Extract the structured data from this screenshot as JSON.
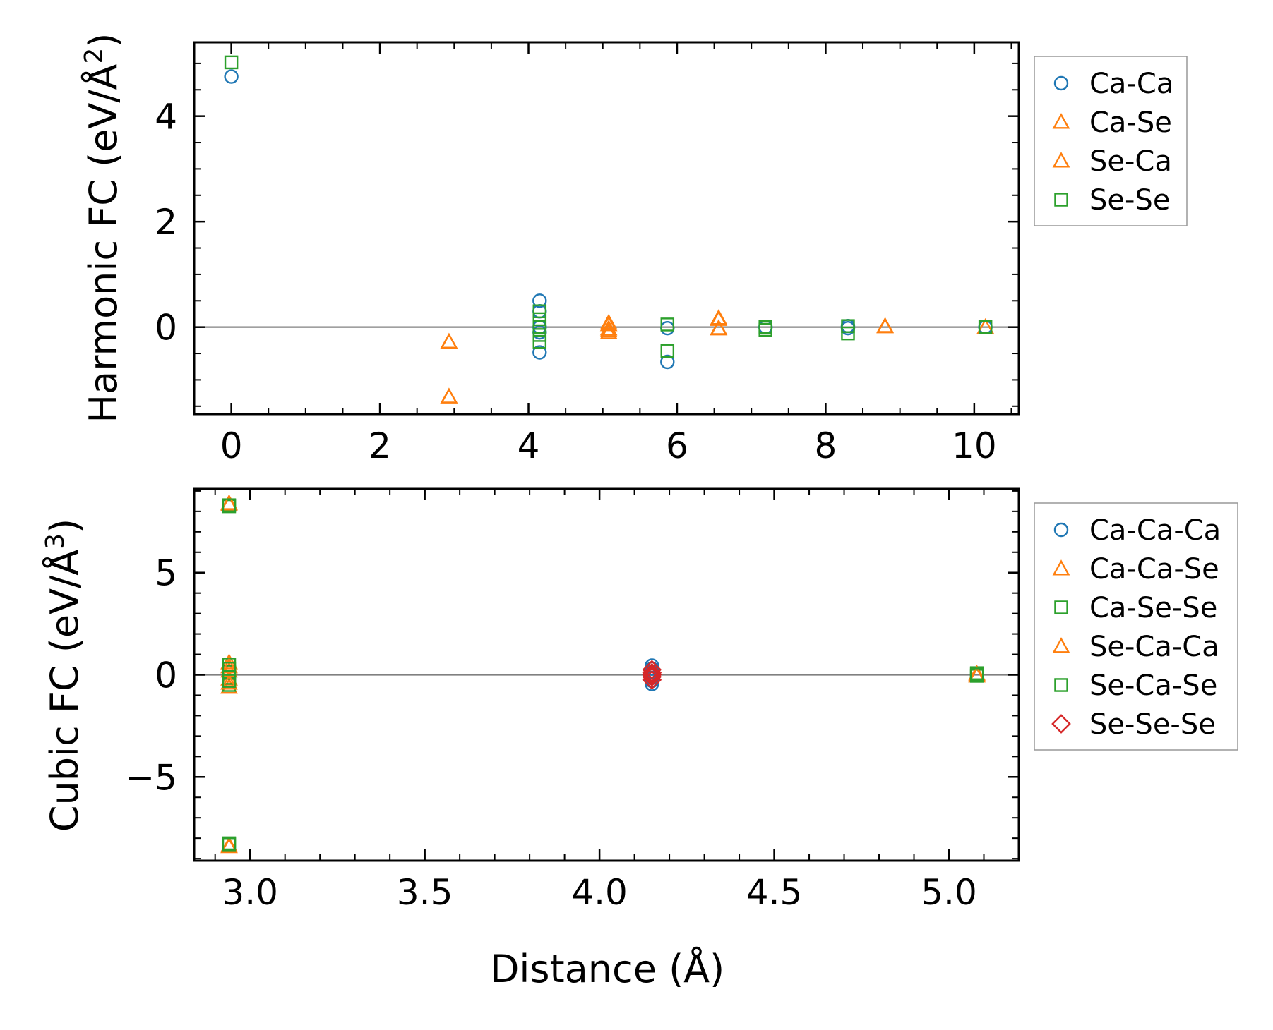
{
  "figure": {
    "xlabel": "Distance (Å)"
  },
  "chart_data": [
    {
      "type": "scatter",
      "ylabel_main": "Harmonic FC (eV/Å",
      "ylabel_sup": "2",
      "ylabel_close": ")",
      "xlim": [
        -0.5,
        10.6
      ],
      "ylim": [
        -1.65,
        5.4
      ],
      "xticks": [
        0,
        2,
        4,
        6,
        8,
        10
      ],
      "yticks": [
        0,
        2,
        4
      ],
      "xminor": 0.5,
      "yminor": 0.5,
      "zero_line": true,
      "series": [
        {
          "name": "Ca-Ca",
          "marker": "circle",
          "color": "#1f77b4",
          "x": [
            0,
            4.15,
            4.15,
            4.15,
            4.15,
            4.15,
            5.87,
            5.87,
            7.19,
            8.3,
            8.3,
            10.15
          ],
          "y": [
            4.75,
            0.5,
            0.3,
            0.0,
            -0.1,
            -0.48,
            -0.02,
            -0.66,
            0.0,
            0.02,
            -0.02,
            0.0
          ]
        },
        {
          "name": "Ca-Se",
          "marker": "triangle",
          "color": "#ff7f0e",
          "x": [
            2.93,
            2.93,
            5.08,
            5.08,
            5.08,
            6.56,
            6.56,
            8.8
          ],
          "y": [
            -0.28,
            -1.32,
            0.08,
            -0.03,
            -0.1,
            0.17,
            -0.02,
            0.02
          ]
        },
        {
          "name": "Se-Ca",
          "marker": "triangle",
          "color": "#ff7f0e",
          "x": [
            2.93,
            2.93,
            5.08,
            5.08,
            6.56,
            6.56,
            8.8,
            10.15
          ],
          "y": [
            -0.28,
            -1.32,
            0.05,
            -0.06,
            0.15,
            -0.03,
            0.01,
            0.0
          ]
        },
        {
          "name": "Se-Se",
          "marker": "square",
          "color": "#2ca02c",
          "x": [
            0,
            4.15,
            4.15,
            4.15,
            4.15,
            4.15,
            5.87,
            5.87,
            7.19,
            7.19,
            8.3,
            8.3,
            10.15
          ],
          "y": [
            5.02,
            0.3,
            0.15,
            0.0,
            -0.15,
            -0.28,
            0.05,
            -0.45,
            0.0,
            -0.05,
            0.02,
            -0.12,
            0.0
          ]
        }
      ]
    },
    {
      "type": "scatter",
      "ylabel_main": "Cubic FC (eV/Å",
      "ylabel_sup": "3",
      "ylabel_close": ")",
      "xlim": [
        2.84,
        5.2
      ],
      "ylim": [
        -9.1,
        9.1
      ],
      "xticks": [
        3.0,
        3.5,
        4.0,
        4.5,
        5.0
      ],
      "xtick_labels": [
        "3.0",
        "3.5",
        "4.0",
        "4.5",
        "5.0"
      ],
      "yticks": [
        -5,
        0,
        5
      ],
      "ytick_labels": [
        "−5",
        "0",
        "5"
      ],
      "xminor": 0.1,
      "yminor": 1,
      "zero_line": true,
      "series": [
        {
          "name": "Ca-Ca-Ca",
          "marker": "circle",
          "color": "#1f77b4",
          "x": [
            4.15,
            4.15,
            4.15,
            4.15,
            4.15,
            4.15,
            4.15
          ],
          "y": [
            0.45,
            0.3,
            0.15,
            0.0,
            -0.15,
            -0.3,
            -0.45
          ]
        },
        {
          "name": "Ca-Ca-Se",
          "marker": "triangle",
          "color": "#ff7f0e",
          "x": [
            2.94,
            2.94,
            2.94,
            2.94,
            2.94,
            2.94,
            5.08,
            5.08
          ],
          "y": [
            8.35,
            0.6,
            0.2,
            -0.2,
            -0.6,
            -8.35,
            0.05,
            -0.05
          ]
        },
        {
          "name": "Ca-Se-Se",
          "marker": "square",
          "color": "#2ca02c",
          "x": [
            2.94,
            2.94,
            2.94,
            2.94,
            2.94,
            2.94,
            5.08,
            5.08
          ],
          "y": [
            8.25,
            0.5,
            0.15,
            -0.15,
            -0.5,
            -8.25,
            0.08,
            -0.05
          ]
        },
        {
          "name": "Se-Ca-Ca",
          "marker": "triangle",
          "color": "#ff7f0e",
          "x": [
            2.94,
            2.94,
            2.94,
            2.94,
            5.08
          ],
          "y": [
            8.4,
            0.4,
            -0.4,
            -8.4,
            0.0
          ]
        },
        {
          "name": "Se-Ca-Se",
          "marker": "square",
          "color": "#2ca02c",
          "x": [
            2.94,
            2.94,
            2.94,
            2.94,
            5.08
          ],
          "y": [
            8.3,
            0.3,
            -0.3,
            -8.3,
            0.02
          ]
        },
        {
          "name": "Se-Se-Se",
          "marker": "diamond",
          "color": "#d62728",
          "x": [
            4.15,
            4.15,
            4.15,
            4.15,
            4.15
          ],
          "y": [
            0.25,
            0.1,
            0.0,
            -0.1,
            -0.25
          ]
        }
      ]
    }
  ]
}
